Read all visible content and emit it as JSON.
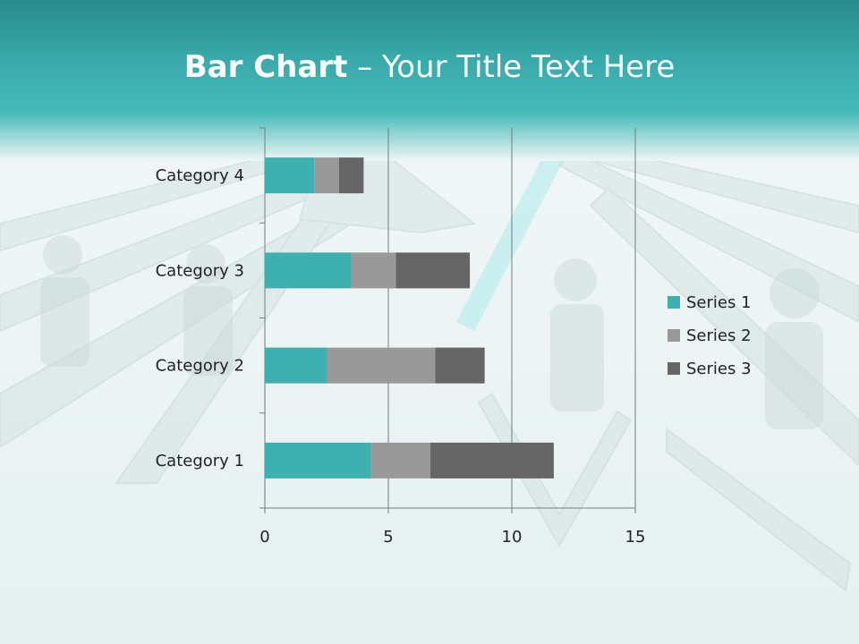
{
  "slide": {
    "title_bold": "Bar Chart",
    "title_sep": " – ",
    "title_rest": "Your Title Text Here"
  },
  "chart_data": {
    "type": "bar",
    "orientation": "horizontal",
    "stacked": true,
    "categories": [
      "Category 1",
      "Category 2",
      "Category 3",
      "Category 4"
    ],
    "series": [
      {
        "name": "Series 1",
        "values": [
          4.3,
          2.5,
          3.5,
          2.0
        ],
        "color": "#3fb0b0"
      },
      {
        "name": "Series 2",
        "values": [
          2.4,
          4.4,
          1.8,
          1.0
        ],
        "color": "#999999"
      },
      {
        "name": "Series 3",
        "values": [
          5.0,
          2.0,
          3.0,
          1.0
        ],
        "color": "#666666"
      }
    ],
    "x_ticks": [
      "0",
      "5",
      "10",
      "15"
    ],
    "xlim": [
      0,
      15
    ],
    "grid": true,
    "legend": "right"
  },
  "colors": {
    "header_teal": "#3aaeae",
    "header_dark": "#2a8c8c",
    "background": "#eef5f5"
  }
}
